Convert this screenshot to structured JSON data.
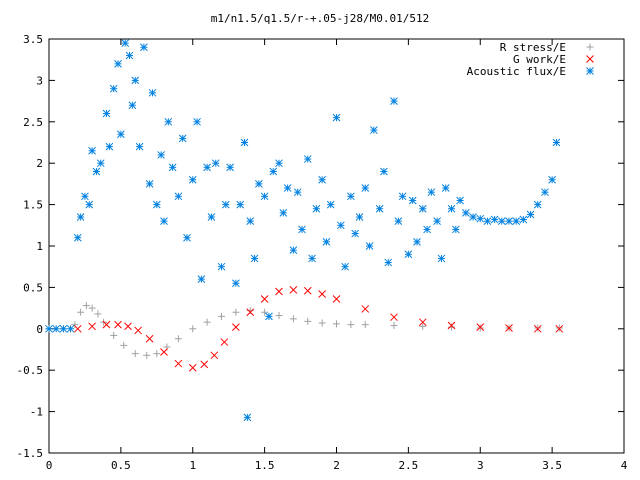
{
  "chart_data": {
    "type": "scatter",
    "title": "m1/n1.5/q1.5/r-+.05-j28/M0.01/512",
    "xlim": [
      0,
      4
    ],
    "ylim": [
      -1.5,
      3.5
    ],
    "x_ticks": [
      0,
      0.5,
      1,
      1.5,
      2,
      2.5,
      3,
      3.5,
      4
    ],
    "y_ticks": [
      -1.5,
      -1,
      -0.5,
      0,
      0.5,
      1,
      1.5,
      2,
      2.5,
      3,
      3.5
    ],
    "x_tick_labels": [
      "0",
      "0.5",
      "1",
      "1.5",
      "2",
      "2.5",
      "3",
      "3.5",
      "4"
    ],
    "y_tick_labels": [
      "-1.5",
      "-1",
      "-0.5",
      "0",
      "0.5",
      "1",
      "1.5",
      "2",
      "2.5",
      "3",
      "3.5"
    ],
    "grid": false,
    "legend_position": "top-right",
    "series": [
      {
        "name": "R stress/E",
        "marker": "+",
        "color": "#a0a0a0",
        "x": [
          0,
          0.1,
          0.18,
          0.22,
          0.26,
          0.3,
          0.34,
          0.38,
          0.45,
          0.52,
          0.6,
          0.68,
          0.75,
          0.82,
          0.9,
          1.0,
          1.1,
          1.2,
          1.3,
          1.4,
          1.5,
          1.6,
          1.7,
          1.8,
          1.9,
          2.0,
          2.1,
          2.2,
          2.4,
          2.6,
          2.8,
          3.0,
          3.2,
          3.4,
          3.55
        ],
        "y": [
          0,
          0,
          0.05,
          0.2,
          0.28,
          0.25,
          0.18,
          0.08,
          -0.08,
          -0.2,
          -0.3,
          -0.32,
          -0.3,
          -0.22,
          -0.12,
          0.0,
          0.08,
          0.15,
          0.2,
          0.22,
          0.2,
          0.16,
          0.12,
          0.09,
          0.07,
          0.06,
          0.05,
          0.05,
          0.04,
          0.03,
          0.02,
          0.01,
          0.01,
          0.01,
          0.01
        ]
      },
      {
        "name": "G work/E",
        "marker": "x",
        "color": "#ff0000",
        "x": [
          0.2,
          0.3,
          0.4,
          0.48,
          0.55,
          0.62,
          0.7,
          0.8,
          0.9,
          1.0,
          1.08,
          1.15,
          1.22,
          1.3,
          1.4,
          1.5,
          1.6,
          1.7,
          1.8,
          1.9,
          2.0,
          2.2,
          2.4,
          2.6,
          2.8,
          3.0,
          3.2,
          3.4,
          3.55
        ],
        "y": [
          0.0,
          0.03,
          0.05,
          0.05,
          0.03,
          -0.02,
          -0.12,
          -0.28,
          -0.42,
          -0.47,
          -0.43,
          -0.32,
          -0.16,
          0.02,
          0.2,
          0.36,
          0.45,
          0.47,
          0.46,
          0.42,
          0.36,
          0.24,
          0.14,
          0.08,
          0.04,
          0.02,
          0.01,
          0.0,
          0.0
        ]
      },
      {
        "name": "Acoustic flux/E",
        "marker": "*",
        "color": "#0080e0",
        "x": [
          0.0,
          0.05,
          0.1,
          0.15,
          0.2,
          0.22,
          0.25,
          0.28,
          0.3,
          0.33,
          0.36,
          0.4,
          0.42,
          0.45,
          0.48,
          0.5,
          0.53,
          0.56,
          0.58,
          0.6,
          0.63,
          0.66,
          0.7,
          0.72,
          0.75,
          0.78,
          0.8,
          0.83,
          0.86,
          0.9,
          0.93,
          0.96,
          1.0,
          1.03,
          1.06,
          1.1,
          1.13,
          1.16,
          1.2,
          1.23,
          1.26,
          1.3,
          1.33,
          1.36,
          1.38,
          1.4,
          1.43,
          1.46,
          1.5,
          1.53,
          1.56,
          1.6,
          1.63,
          1.66,
          1.7,
          1.73,
          1.76,
          1.8,
          1.83,
          1.86,
          1.9,
          1.93,
          1.96,
          2.0,
          2.03,
          2.06,
          2.1,
          2.13,
          2.16,
          2.2,
          2.23,
          2.26,
          2.3,
          2.33,
          2.36,
          2.4,
          2.43,
          2.46,
          2.5,
          2.53,
          2.56,
          2.6,
          2.63,
          2.66,
          2.7,
          2.73,
          2.76,
          2.8,
          2.83,
          2.86,
          2.9,
          2.95,
          3.0,
          3.05,
          3.1,
          3.15,
          3.2,
          3.25,
          3.3,
          3.35,
          3.4,
          3.45,
          3.5,
          3.53
        ],
        "y": [
          0.0,
          0.0,
          0.0,
          0.0,
          1.1,
          1.35,
          1.6,
          1.5,
          2.15,
          1.9,
          2.0,
          2.6,
          2.2,
          2.9,
          3.2,
          2.35,
          3.45,
          3.3,
          2.7,
          3.0,
          2.2,
          3.4,
          1.75,
          2.85,
          1.5,
          2.1,
          1.3,
          2.5,
          1.95,
          1.6,
          2.3,
          1.1,
          1.8,
          2.5,
          0.6,
          1.95,
          1.35,
          2.0,
          0.75,
          1.5,
          1.95,
          0.55,
          1.5,
          2.25,
          -1.07,
          1.3,
          0.85,
          1.75,
          1.6,
          0.15,
          1.9,
          2.0,
          1.4,
          1.7,
          0.95,
          1.65,
          1.2,
          2.05,
          0.85,
          1.45,
          1.8,
          1.05,
          1.5,
          2.55,
          1.25,
          0.75,
          1.6,
          1.15,
          1.35,
          1.7,
          1.0,
          2.4,
          1.45,
          1.9,
          0.8,
          2.75,
          1.3,
          1.6,
          0.9,
          1.55,
          1.05,
          1.45,
          1.2,
          1.65,
          1.3,
          0.85,
          1.7,
          1.45,
          1.2,
          1.55,
          1.4,
          1.35,
          1.33,
          1.3,
          1.32,
          1.3,
          1.3,
          1.3,
          1.32,
          1.38,
          1.5,
          1.65,
          1.8,
          2.25
        ]
      }
    ]
  }
}
